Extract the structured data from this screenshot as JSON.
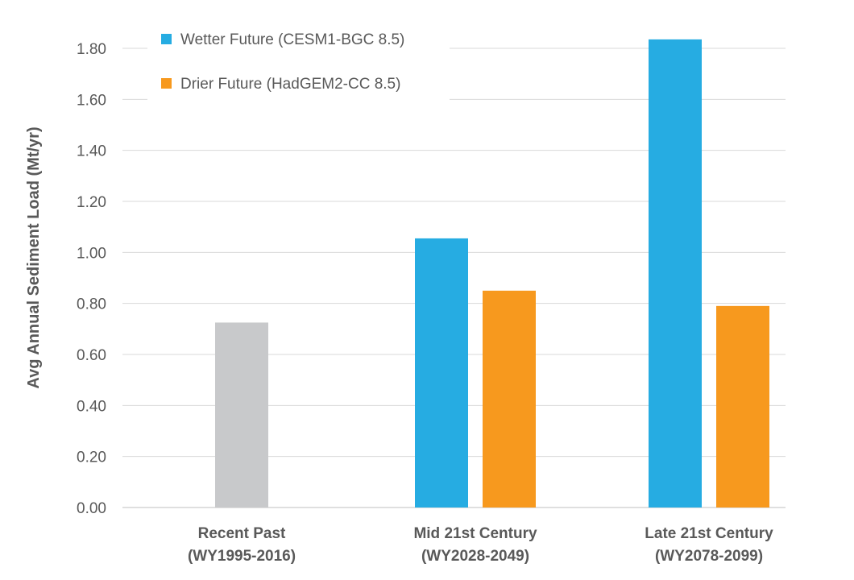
{
  "chart_data": {
    "type": "bar",
    "title": "",
    "xlabel": "",
    "ylabel": "Avg Annual Sediment Load (Mt/yr)",
    "ylim": [
      0,
      1.8
    ],
    "yticks": [
      "0.00",
      "0.20",
      "0.40",
      "0.60",
      "0.80",
      "1.00",
      "1.20",
      "1.40",
      "1.60",
      "1.80"
    ],
    "grid": true,
    "legend_position": "top-left",
    "categories": [
      {
        "line1": "Recent Past",
        "line2": "(WY1995-2016)"
      },
      {
        "line1": "Mid 21st Century",
        "line2": "(WY2028-2049)"
      },
      {
        "line1": "Late 21st Century",
        "line2": "(WY2078-2099)"
      }
    ],
    "bars": [
      {
        "category": 0,
        "series": null,
        "value": 0.725,
        "color": "#c8c9cb"
      },
      {
        "category": 1,
        "series": 0,
        "value": 1.055,
        "color": "#26ace2"
      },
      {
        "category": 1,
        "series": 1,
        "value": 0.85,
        "color": "#f7991e"
      },
      {
        "category": 2,
        "series": 0,
        "value": 1.835,
        "color": "#26ace2"
      },
      {
        "category": 2,
        "series": 1,
        "value": 0.79,
        "color": "#f7991e"
      }
    ],
    "series": [
      {
        "name": "Wetter Future (CESM1-BGC 8.5)",
        "color": "#26ace2"
      },
      {
        "name": "Drier Future (HadGEM2-CC 8.5)",
        "color": "#f7991e"
      }
    ],
    "colors": {
      "gridline": "#d9d9d9",
      "axis": "#bfbfbf",
      "text": "#595959",
      "recent_past": "#c8c9cb"
    }
  }
}
